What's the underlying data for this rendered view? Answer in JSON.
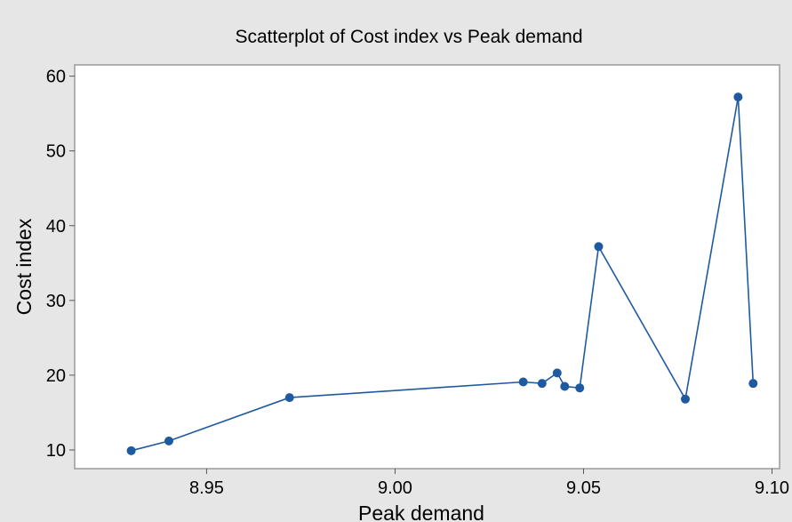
{
  "chart_data": {
    "type": "scatter",
    "title": "Scatterplot of Cost index vs Peak demand",
    "xlabel": "Peak demand",
    "ylabel": "Cost index",
    "xlim": [
      8.915,
      9.102
    ],
    "ylim": [
      7.5,
      61.5
    ],
    "xticks": [
      8.95,
      9.0,
      9.05,
      9.1
    ],
    "xtick_labels": [
      "8.95",
      "9.00",
      "9.05",
      "9.10"
    ],
    "yticks": [
      10,
      20,
      30,
      40,
      50,
      60
    ],
    "ytick_labels": [
      "10",
      "20",
      "30",
      "40",
      "50",
      "60"
    ],
    "connected": true,
    "grid": false,
    "series": [
      {
        "color": "#1f5aa0",
        "x": [
          8.93,
          8.94,
          8.972,
          9.034,
          9.039,
          9.043,
          9.045,
          9.049,
          9.054,
          9.077,
          9.091,
          9.095
        ],
        "y": [
          9.9,
          11.2,
          17.0,
          19.1,
          18.9,
          20.3,
          18.5,
          18.3,
          37.2,
          16.8,
          57.2,
          18.9
        ]
      }
    ]
  }
}
